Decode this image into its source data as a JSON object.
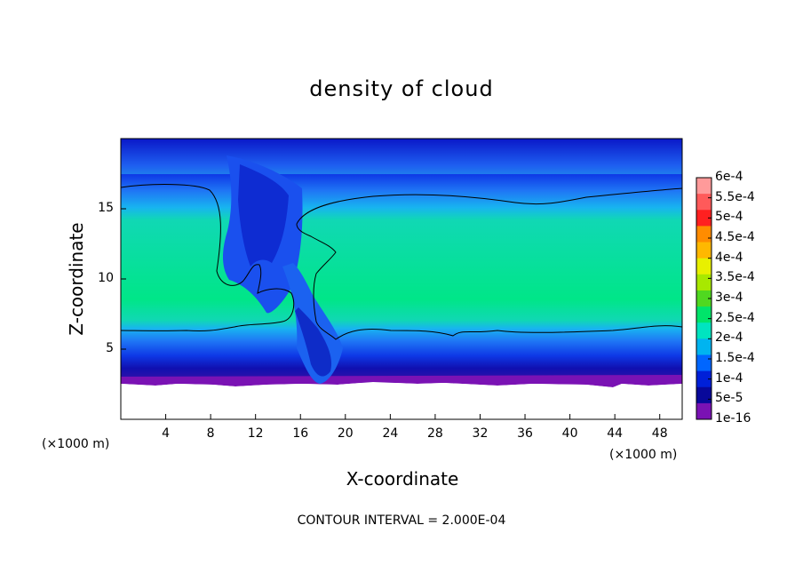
{
  "chart_data": {
    "type": "heatmap",
    "title": "density of cloud",
    "xlabel": "X-coordinate",
    "ylabel": "Z-coordinate",
    "x_unit": "(×1000 m)",
    "y_unit": "(×1000 m)",
    "xlim": [
      0,
      50
    ],
    "ylim": [
      0,
      20
    ],
    "x_ticks": [
      "4",
      "8",
      "12",
      "16",
      "20",
      "24",
      "28",
      "32",
      "36",
      "40",
      "44",
      "48"
    ],
    "y_ticks": [
      "5",
      "10",
      "15"
    ],
    "contour_interval_text": "CONTOUR INTERVAL = 2.000E-04",
    "colorbar": {
      "labels": [
        "6e-4",
        "5.5e-4",
        "5e-4",
        "4.5e-4",
        "4e-4",
        "3.5e-4",
        "3e-4",
        "2.5e-4",
        "2e-4",
        "1.5e-4",
        "1e-4",
        "5e-5",
        "1e-16"
      ],
      "colors": [
        "#ff9a9a",
        "#ff5a5a",
        "#ff2020",
        "#ff8c00",
        "#ffb800",
        "#e8f000",
        "#a8e800",
        "#50d820",
        "#00e46a",
        "#00e4c0",
        "#00b4f0",
        "#0066ff",
        "#0020d8",
        "#08089a",
        "#7a12b4"
      ]
    },
    "regions": {
      "cloud_band_z": [
        6.3,
        16.3
      ],
      "cloud_peak_density": "2.5e-4",
      "cloud_base_z": 3,
      "updraft_x": 16,
      "contour_level": "2e-4"
    }
  }
}
